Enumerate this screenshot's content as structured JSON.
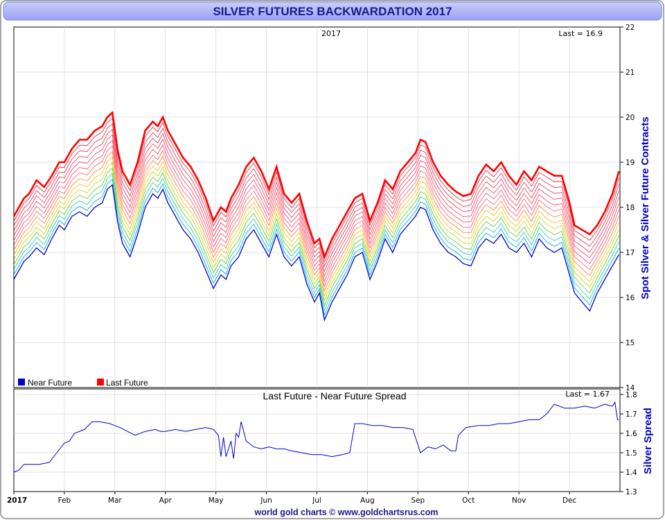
{
  "title": "SILVER FUTURES BACKWARDATION 2017",
  "footer": "world gold charts © www.goldchartsrus.com",
  "colors": {
    "near_future": "#0000cc",
    "last_future": "#ff0000",
    "spread": "#0000cc",
    "title_bar_top": "#c9cdfb",
    "title_bar_bottom": "#9aa2f3"
  },
  "chart_data": [
    {
      "type": "line",
      "subtitle": "2017",
      "last_label": "Last = 16.9",
      "ylabel": "Spot Silver & Silver Future Contracts",
      "ylim": [
        14,
        22
      ],
      "yticks": [
        14,
        15,
        16,
        17,
        18,
        19,
        20,
        21,
        22
      ],
      "grid": true,
      "legend_placement": "bottom-left",
      "x_months": [
        "2017",
        "Feb",
        "Mar",
        "Apr",
        "May",
        "Jun",
        "Jul",
        "Aug",
        "Sep",
        "Oct",
        "Nov",
        "Dec"
      ],
      "x_month_numbers": [
        1,
        2,
        3,
        4,
        5,
        6,
        7,
        8,
        9,
        10,
        11,
        12
      ],
      "x_unit": "month of 2017 (1 = start of January)",
      "series": [
        {
          "name": "Near Future",
          "x": [
            1.0,
            1.1,
            1.2,
            1.3,
            1.45,
            1.6,
            1.75,
            1.9,
            2.0,
            2.15,
            2.3,
            2.45,
            2.6,
            2.75,
            2.85,
            2.95,
            3.05,
            3.15,
            3.3,
            3.45,
            3.6,
            3.75,
            3.85,
            3.95,
            4.05,
            4.2,
            4.35,
            4.5,
            4.65,
            4.8,
            4.95,
            5.1,
            5.2,
            5.3,
            5.45,
            5.6,
            5.75,
            5.9,
            6.05,
            6.2,
            6.35,
            6.5,
            6.65,
            6.8,
            6.95,
            7.05,
            7.15,
            7.3,
            7.45,
            7.6,
            7.75,
            7.9,
            8.05,
            8.2,
            8.35,
            8.5,
            8.65,
            8.8,
            8.95,
            9.05,
            9.15,
            9.3,
            9.45,
            9.6,
            9.75,
            9.9,
            10.05,
            10.2,
            10.35,
            10.5,
            10.65,
            10.8,
            10.95,
            11.1,
            11.25,
            11.4,
            11.55,
            11.7,
            11.85,
            12.0,
            12.1,
            12.25,
            12.4,
            12.55,
            12.7,
            12.85,
            12.98
          ],
          "values": [
            16.4,
            16.6,
            16.8,
            16.9,
            17.1,
            16.95,
            17.3,
            17.6,
            17.5,
            17.8,
            17.9,
            17.8,
            18.0,
            18.1,
            18.4,
            18.5,
            17.7,
            17.2,
            16.9,
            17.4,
            18.0,
            18.3,
            18.2,
            18.4,
            18.1,
            17.8,
            17.5,
            17.3,
            17.0,
            16.6,
            16.2,
            16.5,
            16.4,
            16.7,
            16.9,
            17.3,
            17.5,
            17.2,
            16.9,
            17.4,
            16.9,
            16.7,
            16.9,
            16.3,
            15.9,
            16.1,
            15.5,
            15.9,
            16.2,
            16.5,
            16.9,
            17.0,
            16.4,
            16.8,
            17.3,
            17.0,
            17.4,
            17.6,
            17.8,
            18.0,
            17.95,
            17.5,
            17.2,
            17.0,
            16.9,
            16.75,
            16.7,
            17.1,
            17.3,
            17.2,
            17.4,
            17.1,
            17.0,
            17.2,
            16.9,
            17.3,
            17.1,
            17.0,
            17.1,
            16.5,
            16.1,
            15.9,
            15.7,
            16.1,
            16.4,
            16.7,
            16.95
          ]
        },
        {
          "name": "Last Future",
          "x": [
            1.0,
            1.1,
            1.2,
            1.3,
            1.45,
            1.6,
            1.75,
            1.9,
            2.0,
            2.15,
            2.3,
            2.45,
            2.6,
            2.75,
            2.85,
            2.95,
            3.05,
            3.15,
            3.3,
            3.45,
            3.6,
            3.75,
            3.85,
            3.95,
            4.05,
            4.2,
            4.35,
            4.5,
            4.65,
            4.8,
            4.95,
            5.1,
            5.2,
            5.3,
            5.45,
            5.6,
            5.75,
            5.9,
            6.05,
            6.2,
            6.35,
            6.5,
            6.65,
            6.8,
            6.95,
            7.05,
            7.15,
            7.3,
            7.45,
            7.6,
            7.75,
            7.9,
            8.05,
            8.2,
            8.35,
            8.5,
            8.65,
            8.8,
            8.95,
            9.05,
            9.15,
            9.3,
            9.45,
            9.6,
            9.75,
            9.9,
            10.05,
            10.2,
            10.35,
            10.5,
            10.65,
            10.8,
            10.95,
            11.1,
            11.25,
            11.4,
            11.55,
            11.7,
            11.85,
            12.0,
            12.1,
            12.25,
            12.4,
            12.55,
            12.7,
            12.85,
            12.98
          ],
          "values": [
            17.8,
            18.0,
            18.2,
            18.3,
            18.6,
            18.45,
            18.7,
            19.0,
            19.0,
            19.3,
            19.5,
            19.5,
            19.7,
            19.8,
            20.0,
            20.1,
            19.3,
            18.8,
            18.5,
            19.0,
            19.7,
            19.9,
            19.8,
            20.0,
            19.7,
            19.4,
            19.1,
            18.9,
            18.6,
            18.2,
            17.7,
            18.0,
            17.9,
            18.2,
            18.5,
            18.9,
            19.1,
            18.8,
            18.4,
            18.9,
            18.3,
            18.1,
            18.3,
            17.7,
            17.2,
            17.3,
            16.9,
            17.3,
            17.6,
            17.9,
            18.2,
            18.3,
            17.7,
            18.1,
            18.6,
            18.4,
            18.8,
            19.0,
            19.2,
            19.5,
            19.45,
            19.0,
            18.7,
            18.5,
            18.35,
            18.25,
            18.3,
            18.7,
            18.95,
            18.8,
            19.0,
            18.7,
            18.5,
            18.8,
            18.6,
            18.9,
            18.8,
            18.7,
            18.7,
            18.1,
            17.6,
            17.5,
            17.4,
            17.6,
            17.9,
            18.3,
            18.8
          ]
        }
      ]
    },
    {
      "type": "line",
      "subtitle": "Last Future - Near Future Spread",
      "last_label": "Last = 1.67",
      "ylabel": "Silver Spread",
      "ylim": [
        1.3,
        1.8
      ],
      "yticks": [
        1.3,
        1.4,
        1.5,
        1.6,
        1.7,
        1.8
      ],
      "x_unit": "month of 2017 (1 = start of January)",
      "series": [
        {
          "name": "Spread",
          "x": [
            1.0,
            1.1,
            1.2,
            1.3,
            1.5,
            1.7,
            1.85,
            2.0,
            2.1,
            2.2,
            2.4,
            2.55,
            2.7,
            2.9,
            3.0,
            3.1,
            3.25,
            3.4,
            3.6,
            3.8,
            3.9,
            4.0,
            4.2,
            4.4,
            4.6,
            4.8,
            4.95,
            5.05,
            5.1,
            5.15,
            5.2,
            5.3,
            5.35,
            5.4,
            5.45,
            5.5,
            5.6,
            5.75,
            5.9,
            6.05,
            6.2,
            6.35,
            6.5,
            6.7,
            6.9,
            7.1,
            7.3,
            7.5,
            7.65,
            7.75,
            7.9,
            8.1,
            8.3,
            8.5,
            8.7,
            8.9,
            9.05,
            9.1,
            9.2,
            9.35,
            9.5,
            9.65,
            9.75,
            9.8,
            9.95,
            10.2,
            10.4,
            10.6,
            10.8,
            11.0,
            11.2,
            11.4,
            11.55,
            11.7,
            11.9,
            12.1,
            12.3,
            12.5,
            12.7,
            12.85,
            12.9,
            12.95,
            12.98
          ],
          "values": [
            1.4,
            1.41,
            1.44,
            1.44,
            1.44,
            1.45,
            1.5,
            1.55,
            1.56,
            1.6,
            1.62,
            1.66,
            1.66,
            1.65,
            1.64,
            1.63,
            1.61,
            1.59,
            1.61,
            1.62,
            1.61,
            1.61,
            1.62,
            1.61,
            1.62,
            1.63,
            1.62,
            1.59,
            1.48,
            1.58,
            1.48,
            1.56,
            1.47,
            1.6,
            1.58,
            1.66,
            1.56,
            1.53,
            1.52,
            1.53,
            1.52,
            1.52,
            1.51,
            1.5,
            1.49,
            1.49,
            1.48,
            1.49,
            1.5,
            1.65,
            1.65,
            1.64,
            1.64,
            1.63,
            1.63,
            1.62,
            1.5,
            1.51,
            1.53,
            1.52,
            1.54,
            1.51,
            1.51,
            1.59,
            1.63,
            1.64,
            1.64,
            1.65,
            1.65,
            1.66,
            1.67,
            1.67,
            1.7,
            1.75,
            1.73,
            1.73,
            1.74,
            1.73,
            1.75,
            1.74,
            1.76,
            1.67,
            1.67
          ]
        }
      ]
    }
  ]
}
